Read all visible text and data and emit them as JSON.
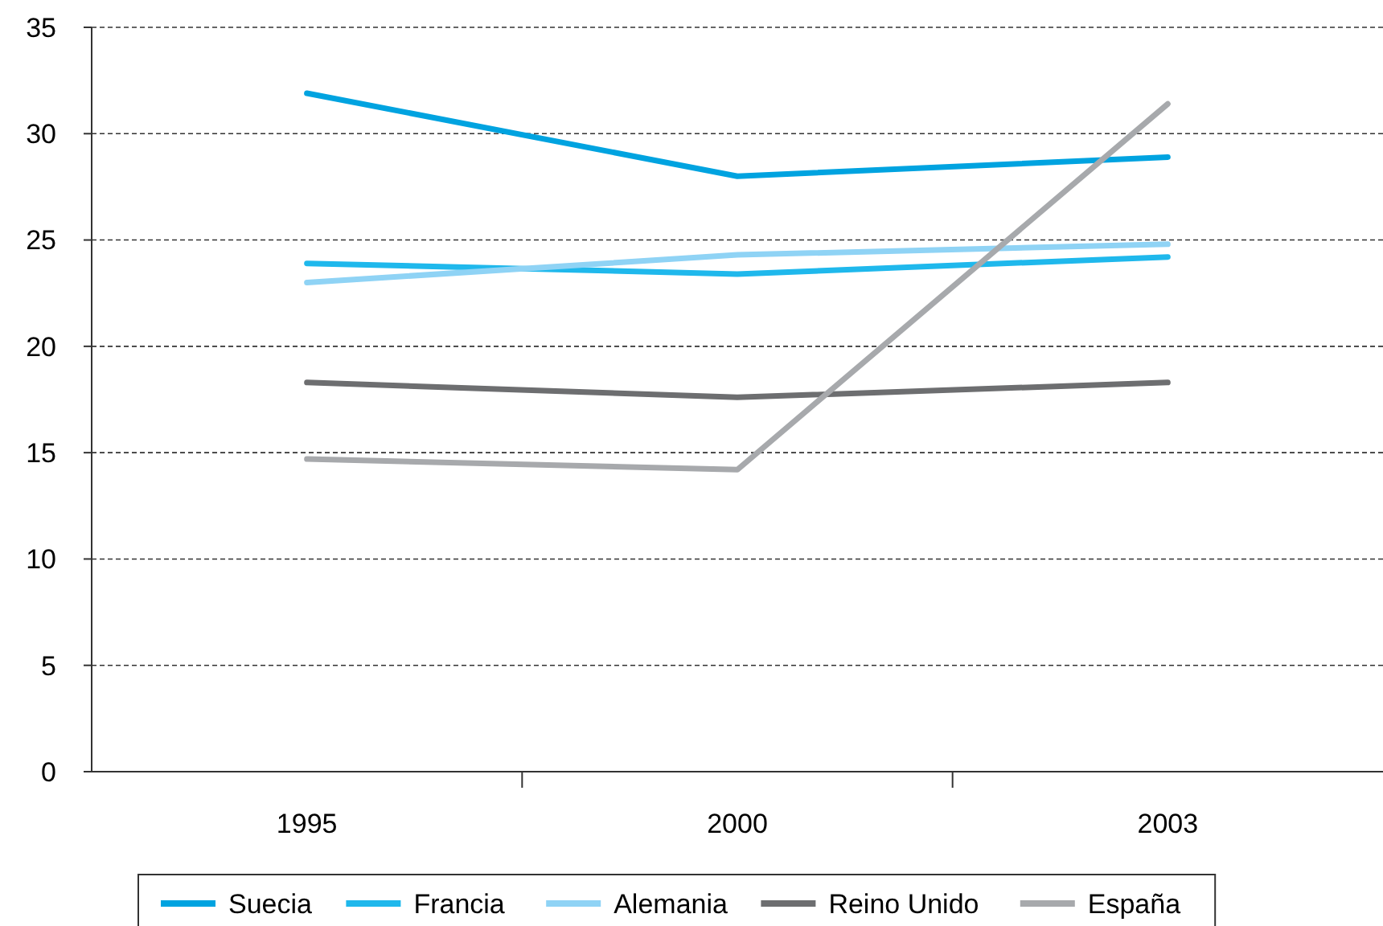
{
  "chart_data": {
    "type": "line",
    "categories": [
      "1995",
      "2000",
      "2003"
    ],
    "ylim": [
      0,
      35
    ],
    "yticks": [
      0,
      5,
      10,
      15,
      20,
      25,
      30,
      35
    ],
    "grid": "y",
    "legend": "bottom",
    "line_style": "solid",
    "marker": "none",
    "series": [
      {
        "name": "Suecia",
        "color": "#00a3e0",
        "values": [
          31.9,
          28.0,
          28.9
        ]
      },
      {
        "name": "Francia",
        "color": "#1fb8ec",
        "values": [
          23.9,
          23.4,
          24.2
        ]
      },
      {
        "name": "Alemania",
        "color": "#8fd3f5",
        "values": [
          23.0,
          24.3,
          24.8
        ]
      },
      {
        "name": "Reino Unido",
        "color": "#6d6e70",
        "values": [
          18.3,
          17.6,
          18.3
        ]
      },
      {
        "name": "España",
        "color": "#a7a9ac",
        "values": [
          14.7,
          14.2,
          31.4
        ]
      }
    ]
  }
}
